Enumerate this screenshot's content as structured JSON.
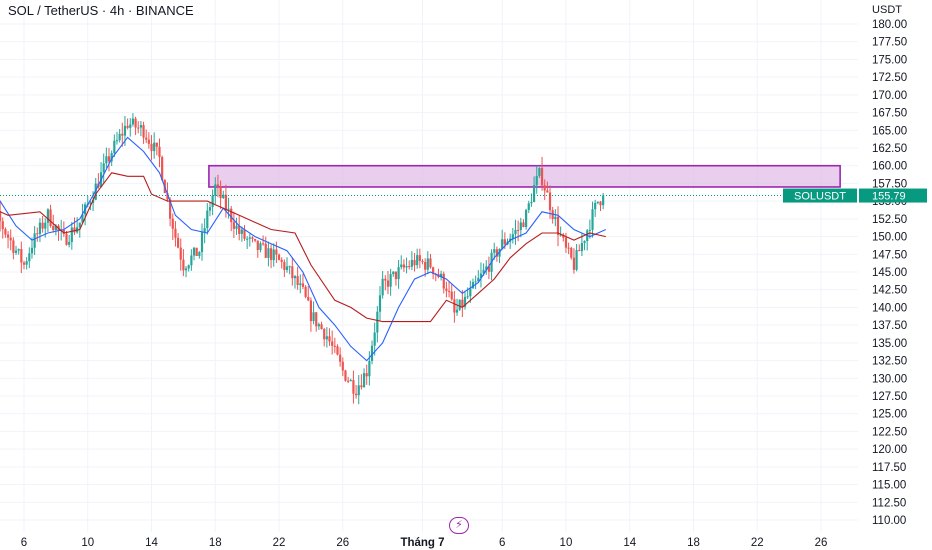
{
  "header": {
    "title": "SOL / TetherUS · 4h · BINANCE",
    "unit": "USDT"
  },
  "colors": {
    "up": "#26a69a",
    "down": "#ef5350",
    "blue_line": "#2962ff",
    "red_line": "#b71c1c",
    "zone_fill": "#e1bee7",
    "zone_border": "#9c27b0",
    "price_tag": "#089981"
  },
  "price_tag": {
    "symbol": "SOLUSDT",
    "price": "155.79"
  },
  "badge_icon": "lightning-icon",
  "chart_data": {
    "type": "candlestick",
    "y_axis": {
      "ylim": [
        108.75,
        182.5
      ],
      "ticks": [
        "180.00",
        "177.50",
        "175.00",
        "172.50",
        "170.00",
        "167.50",
        "165.00",
        "162.50",
        "160.00",
        "157.50",
        "155.00",
        "152.50",
        "150.00",
        "147.50",
        "145.00",
        "142.50",
        "140.00",
        "137.50",
        "135.00",
        "132.50",
        "130.00",
        "127.50",
        "125.00",
        "122.50",
        "120.00",
        "117.50",
        "115.00",
        "112.50",
        "110.00"
      ],
      "position": "right"
    },
    "x_axis": {
      "ticks": [
        "6",
        "10",
        "14",
        "18",
        "22",
        "26",
        "Tháng 7",
        "6",
        "10",
        "14",
        "18",
        "22",
        "26"
      ],
      "bold_tick": "Tháng 7",
      "tick_days": [
        6,
        10,
        14,
        18,
        22,
        26,
        31,
        36,
        40,
        44,
        48,
        52,
        56
      ]
    },
    "grid": true,
    "last_price": 155.79,
    "resistance_zone": {
      "top": 160.0,
      "bottom": 157.0,
      "x_start_day": 17.6,
      "x_end_day": 57.2
    },
    "price_path": [
      [
        3.0,
        157.5
      ],
      [
        4.0,
        154.0
      ],
      [
        5.0,
        150.0
      ],
      [
        6.0,
        146.0
      ],
      [
        6.5,
        149.0
      ],
      [
        7.5,
        153.0
      ],
      [
        8.5,
        149.5
      ],
      [
        9.5,
        152.0
      ],
      [
        10.5,
        157.0
      ],
      [
        11.5,
        162.0
      ],
      [
        12.5,
        166.0
      ],
      [
        13.5,
        165.0
      ],
      [
        14.5,
        161.0
      ],
      [
        15.0,
        155.0
      ],
      [
        15.5,
        150.0
      ],
      [
        16.0,
        146.0
      ],
      [
        17.0,
        148.0
      ],
      [
        17.6,
        154.0
      ],
      [
        18.0,
        157.0
      ],
      [
        18.7,
        154.0
      ],
      [
        19.5,
        150.5
      ],
      [
        20.5,
        148.5
      ],
      [
        21.5,
        147.5
      ],
      [
        22.5,
        145.5
      ],
      [
        23.5,
        142.0
      ],
      [
        24.0,
        139.0
      ],
      [
        25.0,
        136.0
      ],
      [
        26.0,
        131.0
      ],
      [
        26.8,
        128.5
      ],
      [
        27.5,
        131.0
      ],
      [
        28.0,
        137.0
      ],
      [
        28.5,
        143.0
      ],
      [
        29.5,
        145.0
      ],
      [
        30.5,
        146.5
      ],
      [
        31.5,
        146.0
      ],
      [
        32.5,
        143.0
      ],
      [
        33.0,
        139.0
      ],
      [
        34.0,
        142.0
      ],
      [
        35.0,
        145.5
      ],
      [
        36.0,
        149.0
      ],
      [
        37.0,
        151.0
      ],
      [
        37.5,
        153.0
      ],
      [
        38.0,
        157.0
      ],
      [
        38.4,
        159.0
      ],
      [
        38.8,
        156.0
      ],
      [
        39.5,
        151.0
      ],
      [
        40.0,
        148.0
      ],
      [
        40.5,
        146.0
      ],
      [
        41.0,
        149.0
      ],
      [
        41.5,
        152.0
      ],
      [
        42.0,
        155.0
      ],
      [
        42.4,
        155.8
      ]
    ],
    "blue_line": [
      [
        3.0,
        158.0
      ],
      [
        4.5,
        155.0
      ],
      [
        5.5,
        151.5
      ],
      [
        6.5,
        149.5
      ],
      [
        7.5,
        150.5
      ],
      [
        8.5,
        151.0
      ],
      [
        9.5,
        152.5
      ],
      [
        10.5,
        156.5
      ],
      [
        11.5,
        161.0
      ],
      [
        12.5,
        164.0
      ],
      [
        13.5,
        162.0
      ],
      [
        14.5,
        159.0
      ],
      [
        15.5,
        153.0
      ],
      [
        16.5,
        151.0
      ],
      [
        17.5,
        150.5
      ],
      [
        18.5,
        154.0
      ],
      [
        19.5,
        151.5
      ],
      [
        20.5,
        150.0
      ],
      [
        21.5,
        149.0
      ],
      [
        22.5,
        148.0
      ],
      [
        23.5,
        145.0
      ],
      [
        24.5,
        140.0
      ],
      [
        25.5,
        137.5
      ],
      [
        26.5,
        134.5
      ],
      [
        27.5,
        132.5
      ],
      [
        28.5,
        135.0
      ],
      [
        29.5,
        140.0
      ],
      [
        30.5,
        144.0
      ],
      [
        31.5,
        145.0
      ],
      [
        32.5,
        144.0
      ],
      [
        33.5,
        142.0
      ],
      [
        34.5,
        143.5
      ],
      [
        35.5,
        147.0
      ],
      [
        36.5,
        149.5
      ],
      [
        37.5,
        150.5
      ],
      [
        38.5,
        153.5
      ],
      [
        39.5,
        153.0
      ],
      [
        40.5,
        151.0
      ],
      [
        41.5,
        150.0
      ],
      [
        42.5,
        151.0
      ]
    ],
    "red_line": [
      [
        3.0,
        156.0
      ],
      [
        4.0,
        154.0
      ],
      [
        5.0,
        153.0
      ],
      [
        7.0,
        153.5
      ],
      [
        8.5,
        150.5
      ],
      [
        9.5,
        151.0
      ],
      [
        10.5,
        156.0
      ],
      [
        11.5,
        159.0
      ],
      [
        12.5,
        158.5
      ],
      [
        13.5,
        158.5
      ],
      [
        14.0,
        156.0
      ],
      [
        15.0,
        155.0
      ],
      [
        17.5,
        155.0
      ],
      [
        18.0,
        154.5
      ],
      [
        19.5,
        153.0
      ],
      [
        20.5,
        152.0
      ],
      [
        21.5,
        151.0
      ],
      [
        23.0,
        150.5
      ],
      [
        24.0,
        146.0
      ],
      [
        25.5,
        141.0
      ],
      [
        26.5,
        140.0
      ],
      [
        27.5,
        138.5
      ],
      [
        28.5,
        138.0
      ],
      [
        29.5,
        138.0
      ],
      [
        31.5,
        138.0
      ],
      [
        32.5,
        141.0
      ],
      [
        33.5,
        140.0
      ],
      [
        34.5,
        142.0
      ],
      [
        35.5,
        144.0
      ],
      [
        36.5,
        147.0
      ],
      [
        37.5,
        149.0
      ],
      [
        38.5,
        150.5
      ],
      [
        39.5,
        150.5
      ],
      [
        40.5,
        149.5
      ],
      [
        41.5,
        150.5
      ],
      [
        42.5,
        150.0
      ]
    ]
  }
}
